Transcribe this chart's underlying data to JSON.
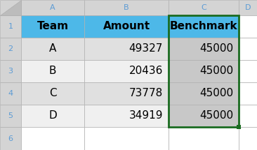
{
  "teams": [
    "A",
    "B",
    "C",
    "D"
  ],
  "amounts": [
    "49327",
    "20436",
    "73778",
    "34919"
  ],
  "benchmark": [
    "45000",
    "45000",
    "45000",
    "45000"
  ],
  "header_bg": "#4DB8E8",
  "benchmark_header_bg": "#4DB8E8",
  "cell_bg_light": "#E0E0E0",
  "cell_bg_white": "#F0F0F0",
  "benchmark_cell_bg": "#C8C8C8",
  "col_header_bg": "#D4D4D4",
  "row_header_bg": "#D4D4D4",
  "grid_color": "#B0B0B0",
  "selection_border_color": "#1A6B20",
  "fig_bg": "#FFFFFF",
  "row_num_color": "#5B9BD5",
  "col_letter_color": "#5B9BD5"
}
